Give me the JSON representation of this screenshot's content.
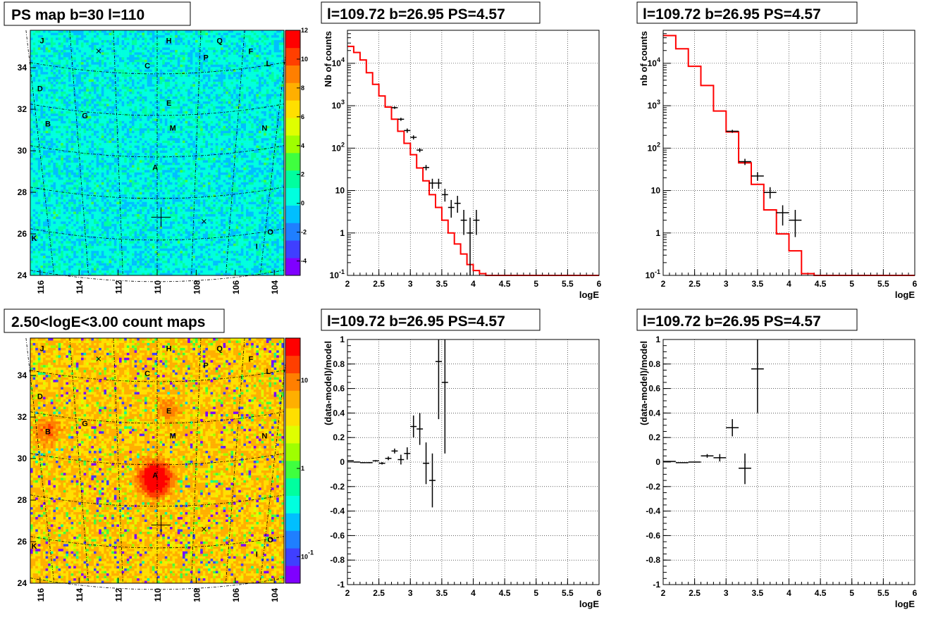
{
  "chart_data": [
    {
      "type": "heatmap",
      "title": "PS map b=30 l=110",
      "x_ticks": [
        "116",
        "114",
        "112",
        "110",
        "108",
        "106",
        "104"
      ],
      "y_ticks": [
        "24",
        "26",
        "28",
        "30",
        "32",
        "34"
      ],
      "xlim": [
        116.5,
        103.5
      ],
      "ylim": [
        24,
        35.8
      ],
      "colorbar_ticks": [
        "-4",
        "-2",
        "0",
        "2",
        "4",
        "6",
        "8",
        "10",
        "12"
      ],
      "colorbar_range": [
        -5,
        12
      ],
      "background_level": 0.3,
      "colors": [
        "#7f00ff",
        "#3f3fff",
        "#1f7fff",
        "#00bfff",
        "#00ffdf",
        "#00ff9f",
        "#3fff3f",
        "#9fff00",
        "#dfff00",
        "#ffdf00",
        "#ffaf00",
        "#ff7f00",
        "#ff3f00",
        "#ff0000"
      ],
      "markers": [
        {
          "label": "J",
          "l": 115.9,
          "b": 35.3
        },
        {
          "label": "H",
          "l": 109.4,
          "b": 35.3
        },
        {
          "label": "Q",
          "l": 106.8,
          "b": 35.3
        },
        {
          "label": "F",
          "l": 105.2,
          "b": 34.8
        },
        {
          "label": "P",
          "l": 107.5,
          "b": 34.5
        },
        {
          "label": "L",
          "l": 104.3,
          "b": 34.2
        },
        {
          "label": "C",
          "l": 110.5,
          "b": 34.1
        },
        {
          "label": "D",
          "l": 116.0,
          "b": 33.0
        },
        {
          "label": "E",
          "l": 109.4,
          "b": 32.3
        },
        {
          "label": "G",
          "l": 113.7,
          "b": 31.7
        },
        {
          "label": "B",
          "l": 115.6,
          "b": 31.3
        },
        {
          "label": "M",
          "l": 109.2,
          "b": 31.1
        },
        {
          "label": "N",
          "l": 104.5,
          "b": 31.1
        },
        {
          "label": "A",
          "l": 110.1,
          "b": 29.2
        },
        {
          "label": "K",
          "l": 116.3,
          "b": 25.8
        },
        {
          "label": "O",
          "l": 104.2,
          "b": 26.1
        },
        {
          "label": "I",
          "l": 104.9,
          "b": 25.4
        }
      ],
      "x_marks": [
        {
          "l": 113.0,
          "b": 34.8
        },
        {
          "l": 107.6,
          "b": 26.6
        }
      ],
      "plus_mark": {
        "l": 109.8,
        "b": 26.8
      }
    },
    {
      "type": "line",
      "title": "l=109.72 b=26.95 PS=4.57",
      "xlabel": "logE",
      "ylabel": "Nb of counts",
      "yscale": "log",
      "xlim": [
        2,
        6
      ],
      "ylim": [
        0.1,
        60000
      ],
      "x_ticks": [
        "2",
        "2.5",
        "3",
        "3.5",
        "4",
        "4.5",
        "5",
        "5.5",
        "6"
      ],
      "y_ticks": [
        "10^-1",
        "1",
        "10",
        "10^2",
        "10^3",
        "10^4"
      ],
      "model_color": "#ff0000",
      "model_step": {
        "edges": [
          2.0,
          2.1,
          2.2,
          2.3,
          2.4,
          2.5,
          2.6,
          2.7,
          2.8,
          2.9,
          3.0,
          3.1,
          3.2,
          3.3,
          3.4,
          3.5,
          3.6,
          3.7,
          3.8,
          3.9,
          4.0,
          4.1,
          4.2,
          6.0
        ],
        "values": [
          25000,
          18000,
          12000,
          6000,
          3200,
          1700,
          930,
          480,
          250,
          130,
          70,
          34,
          17,
          8,
          4,
          2,
          1,
          0.55,
          0.32,
          0.18,
          0.13,
          0.11,
          0.1
        ]
      },
      "data_points": [
        {
          "x": 2.75,
          "y": 900,
          "dx": 0.05,
          "ylo": 840,
          "yhi": 960
        },
        {
          "x": 2.85,
          "y": 480,
          "dx": 0.05,
          "ylo": 440,
          "yhi": 520
        },
        {
          "x": 2.95,
          "y": 260,
          "dx": 0.05,
          "ylo": 230,
          "yhi": 290
        },
        {
          "x": 3.05,
          "y": 180,
          "dx": 0.05,
          "ylo": 160,
          "yhi": 200
        },
        {
          "x": 3.15,
          "y": 90,
          "dx": 0.05,
          "ylo": 80,
          "yhi": 100
        },
        {
          "x": 3.25,
          "y": 35,
          "dx": 0.05,
          "ylo": 30,
          "yhi": 40
        },
        {
          "x": 3.35,
          "y": 15,
          "dx": 0.05,
          "ylo": 11,
          "yhi": 19
        },
        {
          "x": 3.45,
          "y": 15,
          "dx": 0.05,
          "ylo": 11,
          "yhi": 19
        },
        {
          "x": 3.55,
          "y": 8,
          "dx": 0.05,
          "ylo": 5.5,
          "yhi": 11
        },
        {
          "x": 3.65,
          "y": 4,
          "dx": 0.05,
          "ylo": 2.3,
          "yhi": 6
        },
        {
          "x": 3.75,
          "y": 5,
          "dx": 0.05,
          "ylo": 3,
          "yhi": 7.5
        },
        {
          "x": 3.85,
          "y": 2,
          "dx": 0.05,
          "ylo": 0.9,
          "yhi": 3.5
        },
        {
          "x": 3.95,
          "y": 1,
          "dx": 0.05,
          "ylo": 0.1,
          "yhi": 2.3
        },
        {
          "x": 4.05,
          "y": 2,
          "dx": 0.05,
          "ylo": 0.9,
          "yhi": 3.5
        }
      ]
    },
    {
      "type": "line",
      "title": "l=109.72 b=26.95 PS=4.57",
      "xlabel": "logE",
      "ylabel": "nb of counts",
      "yscale": "log",
      "xlim": [
        2,
        6
      ],
      "ylim": [
        0.1,
        60000
      ],
      "x_ticks": [
        "2",
        "2.5",
        "3",
        "3.5",
        "4",
        "4.5",
        "5",
        "5.5",
        "6"
      ],
      "y_ticks": [
        "10^-1",
        "1",
        "10",
        "10^2",
        "10^3",
        "10^4"
      ],
      "model_color": "#ff0000",
      "model_step": {
        "edges": [
          2.0,
          2.2,
          2.4,
          2.6,
          2.8,
          3.0,
          3.2,
          3.4,
          3.6,
          3.8,
          4.0,
          4.2,
          4.4,
          6.0
        ],
        "values": [
          45000,
          22000,
          8500,
          3000,
          750,
          240,
          45,
          14,
          3.5,
          0.95,
          0.38,
          0.11,
          0.1
        ]
      },
      "data_points": [
        {
          "x": 3.1,
          "y": 250,
          "dx": 0.1,
          "ylo": 230,
          "yhi": 270
        },
        {
          "x": 3.3,
          "y": 48,
          "dx": 0.1,
          "ylo": 40,
          "yhi": 56
        },
        {
          "x": 3.5,
          "y": 22,
          "dx": 0.1,
          "ylo": 17,
          "yhi": 27
        },
        {
          "x": 3.7,
          "y": 9,
          "dx": 0.1,
          "ylo": 6.5,
          "yhi": 12
        },
        {
          "x": 3.9,
          "y": 3,
          "dx": 0.1,
          "ylo": 1.5,
          "yhi": 4.5
        },
        {
          "x": 4.1,
          "y": 2,
          "dx": 0.1,
          "ylo": 0.8,
          "yhi": 3.5
        }
      ]
    },
    {
      "type": "heatmap",
      "title": "2.50<logE<3.00 count maps",
      "x_ticks": [
        "116",
        "114",
        "112",
        "110",
        "108",
        "106",
        "104"
      ],
      "y_ticks": [
        "24",
        "26",
        "28",
        "30",
        "32",
        "34"
      ],
      "xlim": [
        116.5,
        103.5
      ],
      "ylim": [
        24,
        35.8
      ],
      "colorbar_ticks": [
        "10^-1",
        "1",
        "10"
      ],
      "colorbar_range": [
        0.05,
        30
      ],
      "background_level": 5,
      "colors": [
        "#7f00ff",
        "#3f3fff",
        "#1f7fff",
        "#00bfff",
        "#00ffdf",
        "#00ff9f",
        "#3fff3f",
        "#9fff00",
        "#dfff00",
        "#ffdf00",
        "#ffaf00",
        "#ff7f00",
        "#ff3f00",
        "#ff0000"
      ],
      "hotspots": [
        {
          "l": 110.1,
          "b": 29.0,
          "amp": 40,
          "sigma": 0.45
        },
        {
          "l": 115.6,
          "b": 31.3,
          "amp": 8,
          "sigma": 0.4
        },
        {
          "l": 109.4,
          "b": 32.3,
          "amp": 6,
          "sigma": 0.35
        }
      ],
      "markers": [
        {
          "label": "J",
          "l": 115.9,
          "b": 35.3
        },
        {
          "label": "H",
          "l": 109.4,
          "b": 35.3
        },
        {
          "label": "Q",
          "l": 106.8,
          "b": 35.3
        },
        {
          "label": "F",
          "l": 105.2,
          "b": 34.8
        },
        {
          "label": "P",
          "l": 107.5,
          "b": 34.5
        },
        {
          "label": "L",
          "l": 104.3,
          "b": 34.2
        },
        {
          "label": "C",
          "l": 110.5,
          "b": 34.1
        },
        {
          "label": "D",
          "l": 116.0,
          "b": 33.0
        },
        {
          "label": "E",
          "l": 109.4,
          "b": 32.3
        },
        {
          "label": "G",
          "l": 113.7,
          "b": 31.7
        },
        {
          "label": "B",
          "l": 115.6,
          "b": 31.3
        },
        {
          "label": "M",
          "l": 109.2,
          "b": 31.1
        },
        {
          "label": "N",
          "l": 104.5,
          "b": 31.1
        },
        {
          "label": "A",
          "l": 110.1,
          "b": 29.2
        },
        {
          "label": "K",
          "l": 116.3,
          "b": 25.8
        },
        {
          "label": "O",
          "l": 104.2,
          "b": 26.1
        },
        {
          "label": "I",
          "l": 104.9,
          "b": 25.4
        }
      ],
      "x_marks": [
        {
          "l": 113.0,
          "b": 34.8
        },
        {
          "l": 107.6,
          "b": 26.6
        }
      ],
      "plus_mark": {
        "l": 109.8,
        "b": 26.8
      }
    },
    {
      "type": "scatter",
      "title": "l=109.72 b=26.95 PS=4.57",
      "xlabel": "logE",
      "ylabel": "(data-model)/model",
      "xlim": [
        2,
        6
      ],
      "ylim": [
        -1,
        1
      ],
      "x_ticks": [
        "2",
        "2.5",
        "3",
        "3.5",
        "4",
        "4.5",
        "5",
        "5.5",
        "6"
      ],
      "y_ticks": [
        "-1",
        "-0.8",
        "-0.6",
        "-0.4",
        "-0.2",
        "0",
        "0.2",
        "0.4",
        "0.6",
        "0.8",
        "1"
      ],
      "data_points": [
        {
          "x": 2.05,
          "y": 0.01,
          "dx": 0.05,
          "ylo": 0.008,
          "yhi": 0.012
        },
        {
          "x": 2.15,
          "y": 0.0,
          "dx": 0.05,
          "ylo": -0.002,
          "yhi": 0.002
        },
        {
          "x": 2.25,
          "y": -0.005,
          "dx": 0.05,
          "ylo": -0.008,
          "yhi": -0.002
        },
        {
          "x": 2.35,
          "y": -0.005,
          "dx": 0.05,
          "ylo": -0.009,
          "yhi": -0.001
        },
        {
          "x": 2.45,
          "y": 0.01,
          "dx": 0.05,
          "ylo": 0.004,
          "yhi": 0.016
        },
        {
          "x": 2.55,
          "y": -0.01,
          "dx": 0.05,
          "ylo": -0.02,
          "yhi": 0.0
        },
        {
          "x": 2.65,
          "y": 0.03,
          "dx": 0.05,
          "ylo": 0.015,
          "yhi": 0.045
        },
        {
          "x": 2.75,
          "y": 0.09,
          "dx": 0.05,
          "ylo": 0.07,
          "yhi": 0.11
        },
        {
          "x": 2.85,
          "y": 0.02,
          "dx": 0.05,
          "ylo": -0.02,
          "yhi": 0.06
        },
        {
          "x": 2.95,
          "y": 0.07,
          "dx": 0.05,
          "ylo": 0.02,
          "yhi": 0.12
        },
        {
          "x": 3.05,
          "y": 0.29,
          "dx": 0.05,
          "ylo": 0.2,
          "yhi": 0.38
        },
        {
          "x": 3.15,
          "y": 0.27,
          "dx": 0.05,
          "ylo": 0.14,
          "yhi": 0.4
        },
        {
          "x": 3.25,
          "y": -0.01,
          "dx": 0.05,
          "ylo": -0.18,
          "yhi": 0.16
        },
        {
          "x": 3.35,
          "y": -0.15,
          "dx": 0.05,
          "ylo": -0.37,
          "yhi": 0.07
        },
        {
          "x": 3.45,
          "y": 0.82,
          "dx": 0.05,
          "ylo": 0.35,
          "yhi": 1.0
        },
        {
          "x": 3.55,
          "y": 0.65,
          "dx": 0.05,
          "ylo": 0.07,
          "yhi": 1.0
        }
      ]
    },
    {
      "type": "scatter",
      "title": "l=109.72 b=26.95 PS=4.57",
      "xlabel": "logE",
      "ylabel": "(data-model)/model",
      "xlim": [
        2,
        6
      ],
      "ylim": [
        -1,
        1
      ],
      "x_ticks": [
        "2",
        "2.5",
        "3",
        "3.5",
        "4",
        "4.5",
        "5",
        "5.5",
        "6"
      ],
      "y_ticks": [
        "-1",
        "-0.8",
        "-0.6",
        "-0.4",
        "-0.2",
        "0",
        "0.2",
        "0.4",
        "0.6",
        "0.8",
        "1"
      ],
      "data_points": [
        {
          "x": 2.1,
          "y": 0.005,
          "dx": 0.1,
          "ylo": 0.003,
          "yhi": 0.007
        },
        {
          "x": 2.3,
          "y": -0.005,
          "dx": 0.1,
          "ylo": -0.007,
          "yhi": -0.003
        },
        {
          "x": 2.5,
          "y": 0.0,
          "dx": 0.1,
          "ylo": -0.004,
          "yhi": 0.004
        },
        {
          "x": 2.7,
          "y": 0.05,
          "dx": 0.1,
          "ylo": 0.035,
          "yhi": 0.065
        },
        {
          "x": 2.9,
          "y": 0.035,
          "dx": 0.1,
          "ylo": 0.005,
          "yhi": 0.065
        },
        {
          "x": 3.1,
          "y": 0.28,
          "dx": 0.1,
          "ylo": 0.21,
          "yhi": 0.35
        },
        {
          "x": 3.3,
          "y": -0.05,
          "dx": 0.1,
          "ylo": -0.18,
          "yhi": 0.07
        },
        {
          "x": 3.5,
          "y": 0.76,
          "dx": 0.1,
          "ylo": 0.4,
          "yhi": 1.0
        }
      ]
    }
  ]
}
